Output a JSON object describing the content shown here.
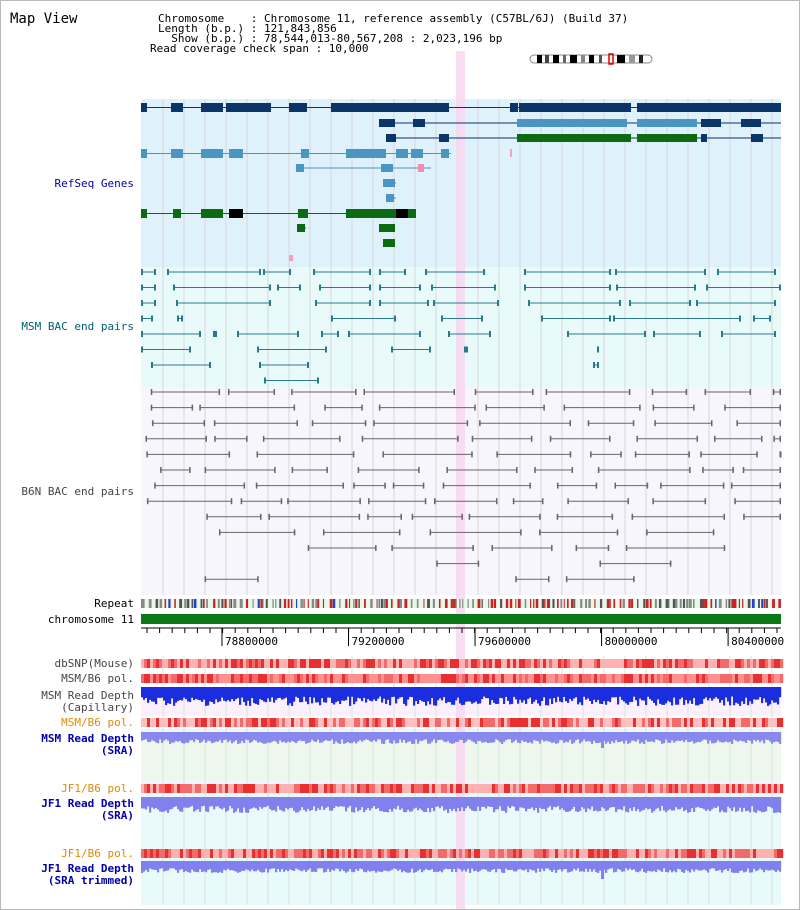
{
  "header": {
    "title": "Map View",
    "info_lines": [
      "Chromosome    : Chromosome 11, reference assembly (C57BL/6J) (Build 37)",
      "Length (b.p.) : 121,843,856",
      "  Show (b.p.) : 78,544,013-80,567,208 : 2,023,196 bp",
      "Read coverage check span : 10,000"
    ]
  },
  "colors": {
    "refseq_bg": "#dff1fb",
    "msm_bg": "#e8fafa",
    "b6n_bg": "#f6f6fc",
    "highlight": "#f7d9f2",
    "refseq_dark": "#0b3468",
    "refseq_mid": "#4a95c2",
    "refseq_green": "#0b6a12",
    "msm_line": "#2a7a8c",
    "b6n_line": "#666666",
    "chromosome_green": "#0a7a16",
    "snp_red": "#ff8c8c",
    "depth_blue": "#2233dd",
    "depth_purple": "#8888ee",
    "label_blue": "#0000aa",
    "label_orange": "#e08a00"
  },
  "tracks": {
    "refseq": "RefSeq Genes",
    "msm_bac": "MSM BAC end pairs",
    "b6n_bac": "B6N BAC end pairs",
    "repeat": "Repeat",
    "chromosome": "chromosome 11",
    "dbsnp": "dbSNP(Mouse)",
    "msm_b6_pol_1": "MSM/B6 pol.",
    "msm_read_depth_cap_1": "MSM Read Depth",
    "msm_read_depth_cap_2": "(Capillary)",
    "msm_b6_pol_2": "MSM/B6 pol.",
    "msm_read_depth_sra_1": "MSM Read Depth",
    "msm_read_depth_sra_2": "(SRA)",
    "jf1_b6_pol_1": "JF1/B6 pol.",
    "jf1_read_depth_sra_1": "JF1 Read Depth",
    "jf1_read_depth_sra_2": "(SRA)",
    "jf1_b6_pol_2": "JF1/B6 pol.",
    "jf1_read_depth_trim_1": "JF1 Read Depth",
    "jf1_read_depth_trim_2": "(SRA trimmed)"
  },
  "axis": {
    "ticks": [
      "78800000",
      "79200000",
      "79600000",
      "80000000",
      "80400000"
    ],
    "tick_values": [
      78800000,
      79200000,
      79600000,
      80000000,
      80400000
    ],
    "range": [
      78544013,
      80567208
    ]
  }
}
